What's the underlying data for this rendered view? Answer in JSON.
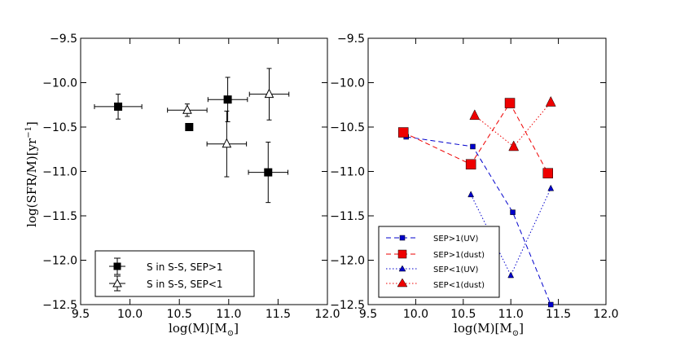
{
  "chart_data": [
    {
      "type": "scatter",
      "panel": "left",
      "xlabel": "log(M)[M",
      "xlabel_sub": "⊙",
      "xlabel_close": "]",
      "ylabel": "log(SFR/M)[yr",
      "ylabel_sup": "−1",
      "ylabel_close": "]",
      "xlim": [
        9.5,
        12.0
      ],
      "ylim": [
        -12.5,
        -9.5
      ],
      "xticks": [
        "9.5",
        "10.0",
        "10.5",
        "11.0",
        "11.5",
        "12.0"
      ],
      "yticks": [
        "−9.5",
        "−10.0",
        "−10.5",
        "−11.0",
        "−11.5",
        "−12.0",
        "−12.5"
      ],
      "legend_position": "lower-left",
      "series": [
        {
          "name": "S in S-S, SEP>1",
          "marker": "square",
          "color": "#000000",
          "points": [
            {
              "x": 9.88,
              "y": -10.27,
              "xerr": 0.24,
              "yerr": 0.14
            },
            {
              "x": 10.6,
              "y": -10.5,
              "xerr": 0,
              "yerr": 0
            },
            {
              "x": 10.99,
              "y": -10.19,
              "xerr": 0.2,
              "yerr": 0.25
            },
            {
              "x": 11.4,
              "y": -11.01,
              "xerr": 0.2,
              "yerr": 0.34
            }
          ]
        },
        {
          "name": "S in S-S, SEP<1",
          "marker": "triangle-open",
          "color": "#000000",
          "points": [
            {
              "x": 10.58,
              "y": -10.31,
              "xerr": 0.2,
              "yerr": 0.07
            },
            {
              "x": 10.98,
              "y": -10.69,
              "xerr": 0.2,
              "yerr": 0.37
            },
            {
              "x": 11.41,
              "y": -10.13,
              "xerr": 0.2,
              "yerr": 0.29
            }
          ]
        }
      ]
    },
    {
      "type": "line",
      "panel": "right",
      "xlabel": "log(M)[M",
      "xlabel_sub": "⊙",
      "xlabel_close": "]",
      "xlim": [
        9.5,
        12.0
      ],
      "ylim": [
        -12.5,
        -9.5
      ],
      "xticks": [
        "9.5",
        "10.0",
        "10.5",
        "11.0",
        "11.5",
        "12.0"
      ],
      "yticks": [
        "−9.5",
        "−10.0",
        "−10.5",
        "−11.0",
        "−11.5",
        "−12.0",
        "−12.5"
      ],
      "legend_position": "lower-left",
      "series": [
        {
          "name": "SEP>1(UV)",
          "color": "#0000cc",
          "linestyle": "dashed",
          "marker": "square-small",
          "x": [
            9.9,
            10.6,
            11.02,
            11.42
          ],
          "y": [
            -10.61,
            -10.72,
            -11.46,
            -12.5
          ]
        },
        {
          "name": "SEP>1(dust)",
          "color": "#ee0000",
          "linestyle": "dashed",
          "marker": "square-large",
          "x": [
            9.87,
            10.58,
            10.99,
            11.39
          ],
          "y": [
            -10.56,
            -10.92,
            -10.23,
            -11.02
          ]
        },
        {
          "name": "SEP<1(UV)",
          "color": "#0000cc",
          "linestyle": "dotted",
          "marker": "triangle-small",
          "x": [
            10.58,
            11.0,
            11.42
          ],
          "y": [
            -11.26,
            -12.17,
            -11.19
          ]
        },
        {
          "name": "SEP<1(dust)",
          "color": "#ee0000",
          "linestyle": "dotted",
          "marker": "triangle-large",
          "x": [
            10.62,
            11.03,
            11.42
          ],
          "y": [
            -10.37,
            -10.72,
            -10.22
          ]
        }
      ]
    }
  ]
}
